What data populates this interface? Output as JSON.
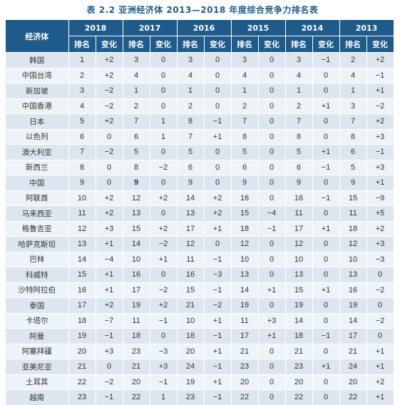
{
  "caption": "表 2.2   亚洲经济体 2013—2018 年度综合竞争力排名表",
  "table": {
    "corner_label": "经济体",
    "years": [
      "2018",
      "2017",
      "2016",
      "2015",
      "2014",
      "2013"
    ],
    "sub_headers": [
      "排名",
      "变化"
    ],
    "rows": [
      {
        "name": "韩国",
        "cells": [
          "1",
          "+2",
          "3",
          "0",
          "3",
          "0",
          "3",
          "0",
          "3",
          "−1",
          "2",
          "+2"
        ]
      },
      {
        "name": "中国台湾",
        "cells": [
          "2",
          "+2",
          "4",
          "0",
          "4",
          "0",
          "4",
          "0",
          "4",
          "0",
          "4",
          "−1"
        ]
      },
      {
        "name": "新加坡",
        "cells": [
          "3",
          "−2",
          "1",
          "0",
          "1",
          "0",
          "1",
          "0",
          "1",
          "0",
          "1",
          "+1"
        ]
      },
      {
        "name": "中国香港",
        "cells": [
          "4",
          "−2",
          "2",
          "0",
          "2",
          "0",
          "2",
          "0",
          "2",
          "+1",
          "3",
          "−2"
        ]
      },
      {
        "name": "日本",
        "cells": [
          "5",
          "+2",
          "7",
          "1",
          "8",
          "−1",
          "7",
          "0",
          "7",
          "0",
          "7",
          "+2"
        ]
      },
      {
        "name": "以色列",
        "cells": [
          "6",
          "0",
          "6",
          "1",
          "7",
          "+1",
          "8",
          "0",
          "8",
          "0",
          "8",
          "+3"
        ]
      },
      {
        "name": "澳大利亚",
        "cells": [
          "7",
          "−2",
          "5",
          "0",
          "5",
          "0",
          "5",
          "0",
          "5",
          "+1",
          "6",
          "−1"
        ]
      },
      {
        "name": "新西兰",
        "cells": [
          "8",
          "0",
          "8",
          "−2",
          "6",
          "0",
          "6",
          "0",
          "6",
          "−1",
          "5",
          "+3"
        ]
      },
      {
        "name": "中国",
        "cells": [
          "9",
          "0",
          "9",
          "0",
          "9",
          "0",
          "9",
          "0",
          "9",
          "0",
          "9",
          "+1"
        ]
      },
      {
        "name": "阿联酋",
        "cells": [
          "10",
          "+2",
          "12",
          "+2",
          "14",
          "+2",
          "16",
          "0",
          "16",
          "−1",
          "15",
          "−9"
        ]
      },
      {
        "name": "马来西亚",
        "cells": [
          "11",
          "+2",
          "13",
          "0",
          "13",
          "+2",
          "15",
          "−4",
          "11",
          "0",
          "11",
          "+5"
        ]
      },
      {
        "name": "格鲁吉亚",
        "cells": [
          "12",
          "+3",
          "15",
          "+2",
          "17",
          "+1",
          "18",
          "−1",
          "17",
          "+1",
          "18",
          "+2"
        ]
      },
      {
        "name": "哈萨克斯坦",
        "cells": [
          "13",
          "+1",
          "14",
          "−2",
          "12",
          "0",
          "12",
          "0",
          "12",
          "0",
          "12",
          "+3"
        ]
      },
      {
        "name": "巴林",
        "cells": [
          "14",
          "−4",
          "10",
          "+1",
          "11",
          "−1",
          "10",
          "0",
          "10",
          "0",
          "10",
          "−3"
        ]
      },
      {
        "name": "科威特",
        "cells": [
          "15",
          "+1",
          "16",
          "0",
          "16",
          "−3",
          "13",
          "0",
          "13",
          "0",
          "13",
          "0"
        ]
      },
      {
        "name": "沙特阿拉伯",
        "cells": [
          "16",
          "+1",
          "17",
          "−2",
          "15",
          "−1",
          "14",
          "+1",
          "15",
          "+1",
          "16",
          "−2"
        ]
      },
      {
        "name": "泰国",
        "cells": [
          "17",
          "+2",
          "19",
          "+2",
          "21",
          "−2",
          "19",
          "0",
          "19",
          "0",
          "19",
          "0"
        ]
      },
      {
        "name": "卡塔尔",
        "cells": [
          "18",
          "−7",
          "11",
          "−1",
          "10",
          "+1",
          "11",
          "+3",
          "14",
          "0",
          "14",
          "−2"
        ]
      },
      {
        "name": "阿曼",
        "cells": [
          "19",
          "−1",
          "18",
          "0",
          "18",
          "−1",
          "17",
          "+1",
          "18",
          "−1",
          "17",
          "0"
        ]
      },
      {
        "name": "阿塞拜疆",
        "cells": [
          "20",
          "+3",
          "23",
          "−3",
          "20",
          "+1",
          "21",
          "0",
          "21",
          "0",
          "21",
          "+1"
        ]
      },
      {
        "name": "亚美尼亚",
        "cells": [
          "21",
          "0",
          "21",
          "+3",
          "24",
          "−1",
          "23",
          "0",
          "23",
          "+1",
          "24",
          "+1"
        ]
      },
      {
        "name": "土耳其",
        "cells": [
          "22",
          "−2",
          "20",
          "−1",
          "19",
          "+1",
          "20",
          "0",
          "20",
          "0",
          "20",
          "+2"
        ]
      },
      {
        "name": "越南",
        "cells": [
          "23",
          "−1",
          "22",
          "1",
          "23",
          "−1",
          "22",
          "0",
          "22",
          "0",
          "22",
          "+1"
        ]
      }
    ]
  }
}
